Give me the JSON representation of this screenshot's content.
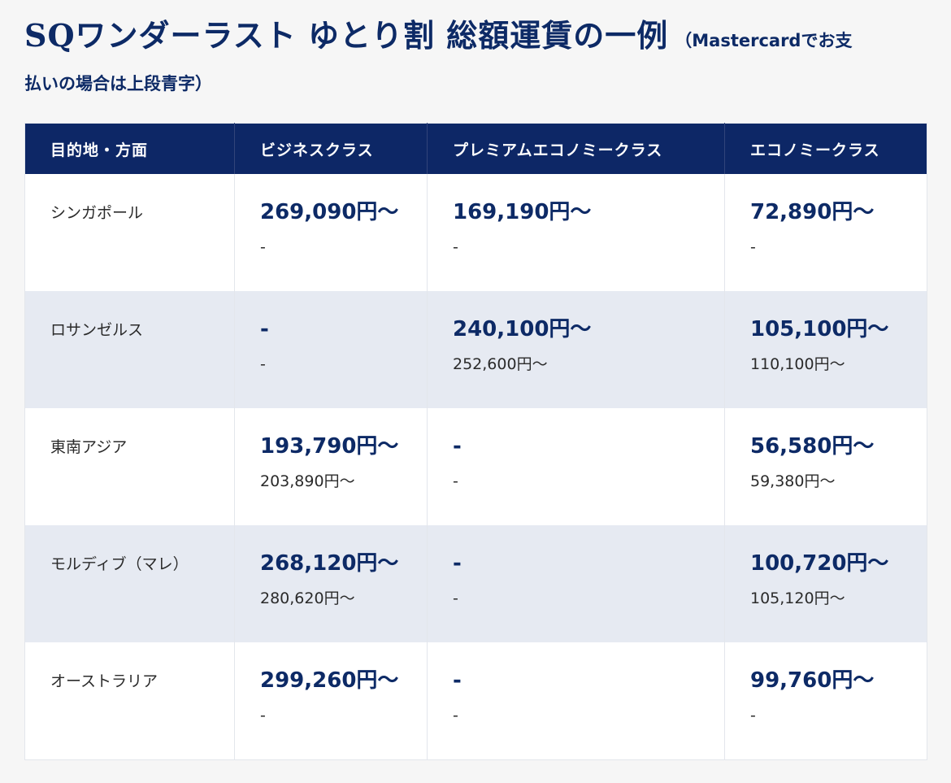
{
  "heading": {
    "title": "SQワンダーラスト ゆとり割 総額運賃の一例",
    "note_part1": "（Mastercardでお支",
    "note_part2": "払いの場合は上段青字）"
  },
  "table": {
    "headers": [
      "目的地・方面",
      "ビジネスクラス",
      "プレミアムエコノミークラス",
      "エコノミークラス"
    ],
    "rows": [
      {
        "destination": "シンガポール",
        "business": {
          "main": "269,090円〜",
          "sub": "-"
        },
        "premium": {
          "main": "169,190円〜",
          "sub": "-"
        },
        "economy": {
          "main": "72,890円〜",
          "sub": "-"
        }
      },
      {
        "destination": "ロサンゼルス",
        "business": {
          "main": "-",
          "sub": "-"
        },
        "premium": {
          "main": "240,100円〜",
          "sub": "252,600円〜"
        },
        "economy": {
          "main": "105,100円〜",
          "sub": "110,100円〜"
        }
      },
      {
        "destination": "東南アジア",
        "business": {
          "main": "193,790円〜",
          "sub": "203,890円〜"
        },
        "premium": {
          "main": "-",
          "sub": "-"
        },
        "economy": {
          "main": "56,580円〜",
          "sub": "59,380円〜"
        }
      },
      {
        "destination": "モルディブ（マレ）",
        "business": {
          "main": "268,120円〜",
          "sub": "280,620円〜"
        },
        "premium": {
          "main": "-",
          "sub": "-"
        },
        "economy": {
          "main": "100,720円〜",
          "sub": "105,120円〜"
        }
      },
      {
        "destination": "オーストラリア",
        "business": {
          "main": "299,260円〜",
          "sub": "-"
        },
        "premium": {
          "main": "-",
          "sub": "-"
        },
        "economy": {
          "main": "99,760円〜",
          "sub": "-"
        }
      }
    ]
  },
  "colors": {
    "header_bg": "#0d2766",
    "price_text": "#0d2a66",
    "alt_row_bg": "#e6eaf2",
    "page_bg": "#f6f6f6"
  }
}
